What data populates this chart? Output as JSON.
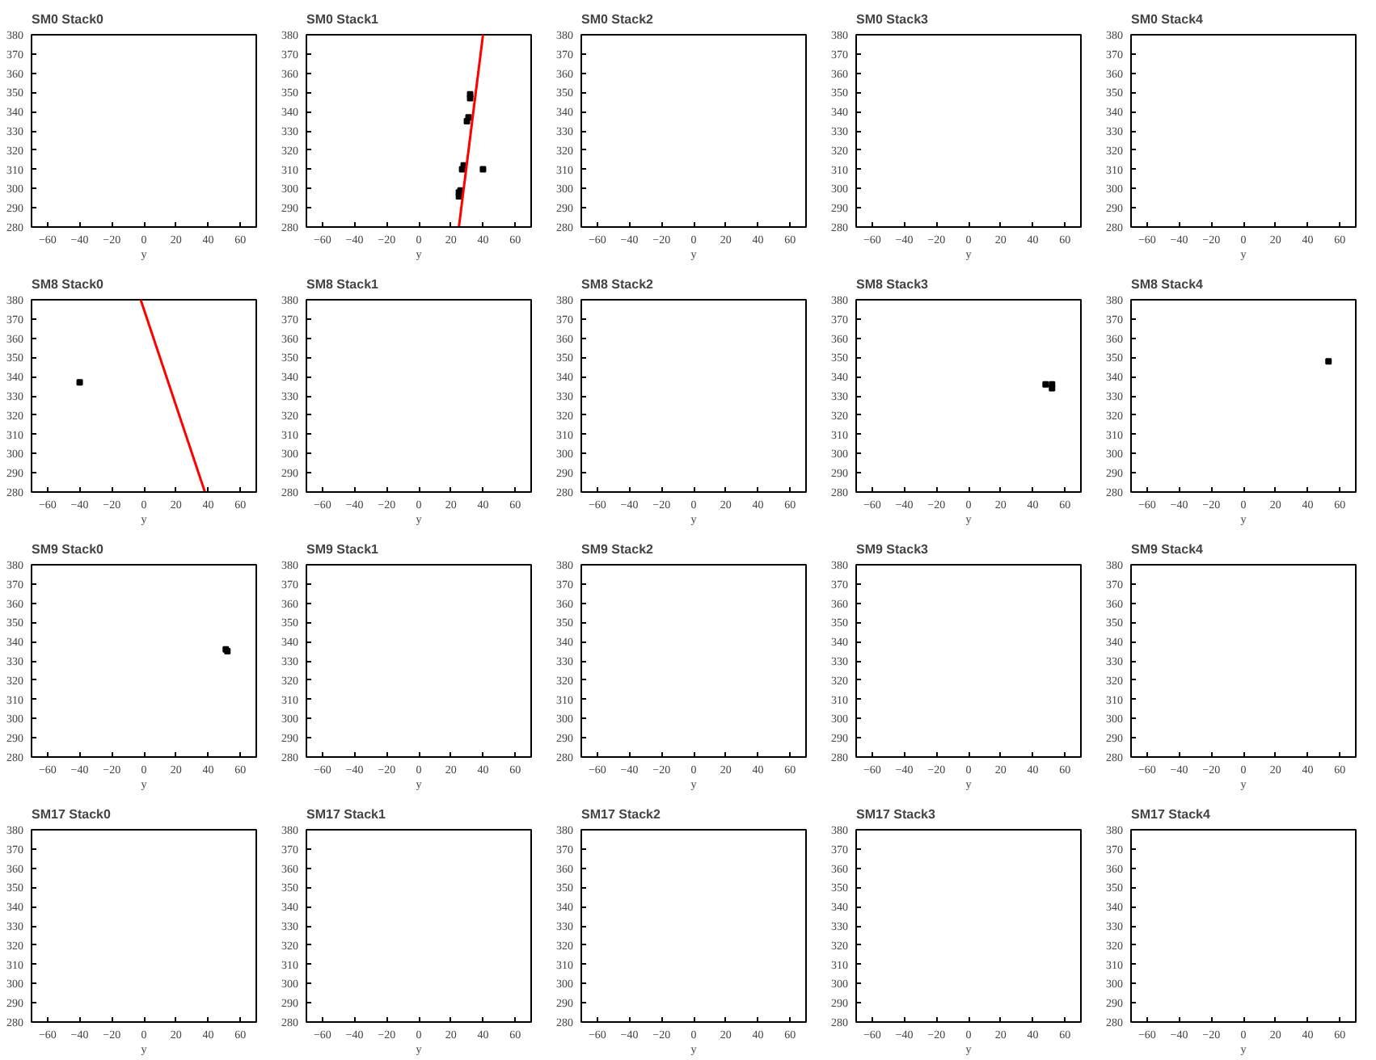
{
  "chart_data": [
    {
      "type": "scatter",
      "title": "SM0 Stack0",
      "xlabel": "y",
      "xlim": [
        -70,
        70
      ],
      "ylim": [
        280,
        380
      ],
      "xticks": [
        -60,
        -40,
        -20,
        0,
        20,
        40,
        60
      ],
      "yticks": [
        280,
        290,
        300,
        310,
        320,
        330,
        340,
        350,
        360,
        370,
        380
      ],
      "grid": false
    },
    {
      "type": "scatter",
      "title": "SM0 Stack1",
      "xlabel": "y",
      "xlim": [
        -70,
        70
      ],
      "ylim": [
        280,
        380
      ],
      "xticks": [
        -60,
        -40,
        -20,
        0,
        20,
        40,
        60
      ],
      "yticks": [
        280,
        290,
        300,
        310,
        320,
        330,
        340,
        350,
        360,
        370,
        380
      ],
      "grid": false,
      "series": [
        {
          "marker": "square",
          "color": "#000000",
          "x": [
            25,
            25,
            26,
            27,
            28,
            30,
            31,
            32,
            32,
            40
          ],
          "values": [
            296,
            298,
            299,
            310,
            312,
            335,
            337,
            347,
            349,
            310
          ]
        },
        {
          "type": "line",
          "color": "#ff0000",
          "x": [
            25,
            40
          ],
          "values": [
            280,
            380
          ]
        }
      ]
    },
    {
      "type": "scatter",
      "title": "SM0 Stack2",
      "xlabel": "y",
      "xlim": [
        -70,
        70
      ],
      "ylim": [
        280,
        380
      ],
      "xticks": [
        -60,
        -40,
        -20,
        0,
        20,
        40,
        60
      ],
      "yticks": [
        280,
        290,
        300,
        310,
        320,
        330,
        340,
        350,
        360,
        370,
        380
      ],
      "grid": false
    },
    {
      "type": "scatter",
      "title": "SM0 Stack3",
      "xlabel": "y",
      "xlim": [
        -70,
        70
      ],
      "ylim": [
        280,
        380
      ],
      "xticks": [
        -60,
        -40,
        -20,
        0,
        20,
        40,
        60
      ],
      "yticks": [
        280,
        290,
        300,
        310,
        320,
        330,
        340,
        350,
        360,
        370,
        380
      ],
      "grid": false
    },
    {
      "type": "scatter",
      "title": "SM0 Stack4",
      "xlabel": "y",
      "xlim": [
        -70,
        70
      ],
      "ylim": [
        280,
        380
      ],
      "xticks": [
        -60,
        -40,
        -20,
        0,
        20,
        40,
        60
      ],
      "yticks": [
        280,
        290,
        300,
        310,
        320,
        330,
        340,
        350,
        360,
        370,
        380
      ],
      "grid": false
    },
    {
      "type": "scatter",
      "title": "SM8 Stack0",
      "xlabel": "y",
      "xlim": [
        -70,
        70
      ],
      "ylim": [
        280,
        380
      ],
      "xticks": [
        -60,
        -40,
        -20,
        0,
        20,
        40,
        60
      ],
      "yticks": [
        280,
        290,
        300,
        310,
        320,
        330,
        340,
        350,
        360,
        370,
        380
      ],
      "grid": false,
      "series": [
        {
          "marker": "square",
          "color": "#000000",
          "x": [
            -40
          ],
          "values": [
            337
          ]
        },
        {
          "type": "line",
          "color": "#ff0000",
          "x": [
            -2,
            38
          ],
          "values": [
            380,
            280
          ]
        }
      ]
    },
    {
      "type": "scatter",
      "title": "SM8 Stack1",
      "xlabel": "y",
      "xlim": [
        -70,
        70
      ],
      "ylim": [
        280,
        380
      ],
      "xticks": [
        -60,
        -40,
        -20,
        0,
        20,
        40,
        60
      ],
      "yticks": [
        280,
        290,
        300,
        310,
        320,
        330,
        340,
        350,
        360,
        370,
        380
      ],
      "grid": false
    },
    {
      "type": "scatter",
      "title": "SM8 Stack2",
      "xlabel": "y",
      "xlim": [
        -70,
        70
      ],
      "ylim": [
        280,
        380
      ],
      "xticks": [
        -60,
        -40,
        -20,
        0,
        20,
        40,
        60
      ],
      "yticks": [
        280,
        290,
        300,
        310,
        320,
        330,
        340,
        350,
        360,
        370,
        380
      ],
      "grid": false
    },
    {
      "type": "scatter",
      "title": "SM8 Stack3",
      "xlabel": "y",
      "xlim": [
        -70,
        70
      ],
      "ylim": [
        280,
        380
      ],
      "xticks": [
        -60,
        -40,
        -20,
        0,
        20,
        40,
        60
      ],
      "yticks": [
        280,
        290,
        300,
        310,
        320,
        330,
        340,
        350,
        360,
        370,
        380
      ],
      "grid": false,
      "series": [
        {
          "marker": "square",
          "color": "#000000",
          "x": [
            48,
            52,
            52
          ],
          "values": [
            336,
            336,
            334
          ]
        }
      ]
    },
    {
      "type": "scatter",
      "title": "SM8 Stack4",
      "xlabel": "y",
      "xlim": [
        -70,
        70
      ],
      "ylim": [
        280,
        380
      ],
      "xticks": [
        -60,
        -40,
        -20,
        0,
        20,
        40,
        60
      ],
      "yticks": [
        280,
        290,
        300,
        310,
        320,
        330,
        340,
        350,
        360,
        370,
        380
      ],
      "grid": false,
      "series": [
        {
          "marker": "square",
          "color": "#000000",
          "x": [
            53
          ],
          "values": [
            348
          ]
        }
      ]
    },
    {
      "type": "scatter",
      "title": "SM9 Stack0",
      "xlabel": "y",
      "xlim": [
        -70,
        70
      ],
      "ylim": [
        280,
        380
      ],
      "xticks": [
        -60,
        -40,
        -20,
        0,
        20,
        40,
        60
      ],
      "yticks": [
        280,
        290,
        300,
        310,
        320,
        330,
        340,
        350,
        360,
        370,
        380
      ],
      "grid": false,
      "series": [
        {
          "marker": "square",
          "color": "#000000",
          "x": [
            51,
            52
          ],
          "values": [
            336,
            335
          ]
        }
      ]
    },
    {
      "type": "scatter",
      "title": "SM9 Stack1",
      "xlabel": "y",
      "xlim": [
        -70,
        70
      ],
      "ylim": [
        280,
        380
      ],
      "xticks": [
        -60,
        -40,
        -20,
        0,
        20,
        40,
        60
      ],
      "yticks": [
        280,
        290,
        300,
        310,
        320,
        330,
        340,
        350,
        360,
        370,
        380
      ],
      "grid": false
    },
    {
      "type": "scatter",
      "title": "SM9 Stack2",
      "xlabel": "y",
      "xlim": [
        -70,
        70
      ],
      "ylim": [
        280,
        380
      ],
      "xticks": [
        -60,
        -40,
        -20,
        0,
        20,
        40,
        60
      ],
      "yticks": [
        280,
        290,
        300,
        310,
        320,
        330,
        340,
        350,
        360,
        370,
        380
      ],
      "grid": false
    },
    {
      "type": "scatter",
      "title": "SM9 Stack3",
      "xlabel": "y",
      "xlim": [
        -70,
        70
      ],
      "ylim": [
        280,
        380
      ],
      "xticks": [
        -60,
        -40,
        -20,
        0,
        20,
        40,
        60
      ],
      "yticks": [
        280,
        290,
        300,
        310,
        320,
        330,
        340,
        350,
        360,
        370,
        380
      ],
      "grid": false
    },
    {
      "type": "scatter",
      "title": "SM9 Stack4",
      "xlabel": "y",
      "xlim": [
        -70,
        70
      ],
      "ylim": [
        280,
        380
      ],
      "xticks": [
        -60,
        -40,
        -20,
        0,
        20,
        40,
        60
      ],
      "yticks": [
        280,
        290,
        300,
        310,
        320,
        330,
        340,
        350,
        360,
        370,
        380
      ],
      "grid": false
    },
    {
      "type": "scatter",
      "title": "SM17 Stack0",
      "xlabel": "y",
      "xlim": [
        -70,
        70
      ],
      "ylim": [
        280,
        380
      ],
      "xticks": [
        -60,
        -40,
        -20,
        0,
        20,
        40,
        60
      ],
      "yticks": [
        280,
        290,
        300,
        310,
        320,
        330,
        340,
        350,
        360,
        370,
        380
      ],
      "grid": false
    },
    {
      "type": "scatter",
      "title": "SM17 Stack1",
      "xlabel": "y",
      "xlim": [
        -70,
        70
      ],
      "ylim": [
        280,
        380
      ],
      "xticks": [
        -60,
        -40,
        -20,
        0,
        20,
        40,
        60
      ],
      "yticks": [
        280,
        290,
        300,
        310,
        320,
        330,
        340,
        350,
        360,
        370,
        380
      ],
      "grid": false
    },
    {
      "type": "scatter",
      "title": "SM17 Stack2",
      "xlabel": "y",
      "xlim": [
        -70,
        70
      ],
      "ylim": [
        280,
        380
      ],
      "xticks": [
        -60,
        -40,
        -20,
        0,
        20,
        40,
        60
      ],
      "yticks": [
        280,
        290,
        300,
        310,
        320,
        330,
        340,
        350,
        360,
        370,
        380
      ],
      "grid": false
    },
    {
      "type": "scatter",
      "title": "SM17 Stack3",
      "xlabel": "y",
      "xlim": [
        -70,
        70
      ],
      "ylim": [
        280,
        380
      ],
      "xticks": [
        -60,
        -40,
        -20,
        0,
        20,
        40,
        60
      ],
      "yticks": [
        280,
        290,
        300,
        310,
        320,
        330,
        340,
        350,
        360,
        370,
        380
      ],
      "grid": false
    },
    {
      "type": "scatter",
      "title": "SM17 Stack4",
      "xlabel": "y",
      "xlim": [
        -70,
        70
      ],
      "ylim": [
        280,
        380
      ],
      "xticks": [
        -60,
        -40,
        -20,
        0,
        20,
        40,
        60
      ],
      "yticks": [
        280,
        290,
        300,
        310,
        320,
        330,
        340,
        350,
        360,
        370,
        380
      ],
      "grid": false
    }
  ]
}
